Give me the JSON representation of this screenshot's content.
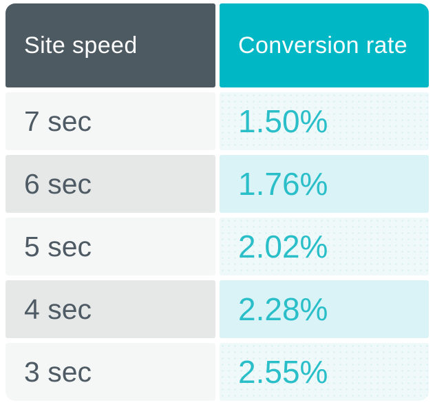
{
  "table": {
    "headers": [
      "Site speed",
      "Conversion rate"
    ],
    "rows": [
      {
        "speed": "7 sec",
        "rate": "1.50%"
      },
      {
        "speed": "6 sec",
        "rate": "1.76%"
      },
      {
        "speed": "5 sec",
        "rate": "2.02%"
      },
      {
        "speed": "4 sec",
        "rate": "2.28%"
      },
      {
        "speed": "3 sec",
        "rate": "2.55%"
      }
    ]
  },
  "chart_data": {
    "type": "table",
    "columns": [
      "Site speed",
      "Conversion rate"
    ],
    "rows": [
      [
        "7 sec",
        "1.50%"
      ],
      [
        "6 sec",
        "1.76%"
      ],
      [
        "5 sec",
        "2.02%"
      ],
      [
        "4 sec",
        "2.28%"
      ],
      [
        "3 sec",
        "2.55%"
      ]
    ],
    "site_speed_seconds": [
      7,
      6,
      5,
      4,
      3
    ],
    "conversion_rate_percent": [
      1.5,
      1.76,
      2.02,
      2.28,
      2.55
    ]
  },
  "colors": {
    "header_left_bg": "#4d5a62",
    "header_right_bg": "#00b8c5",
    "header_text": "#fdfdfd",
    "row_light_gray": "#f5f6f6",
    "row_dark_gray": "#e6e8e8",
    "row_light_teal": "#eff9f9",
    "row_dark_teal": "#daf3f6",
    "speed_text": "#4e5a64",
    "rate_text": "#2abec9"
  }
}
